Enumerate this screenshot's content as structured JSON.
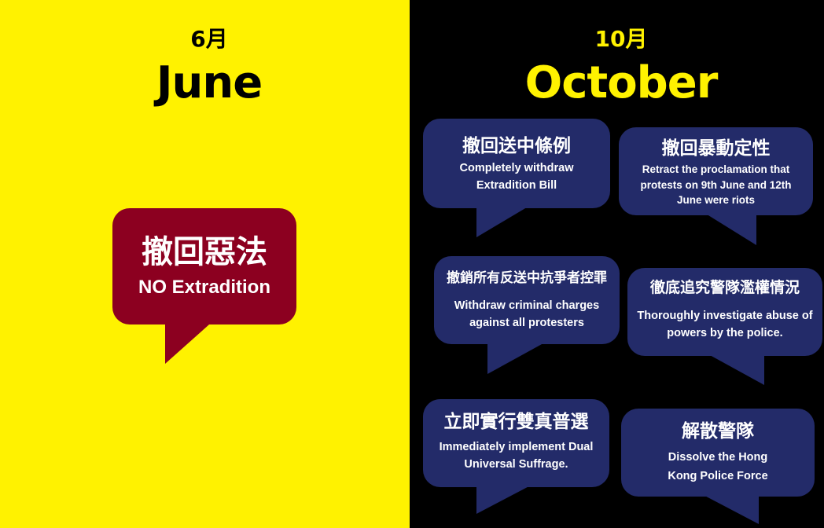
{
  "june": {
    "month_zh": "6月",
    "month_en": "June",
    "demand": {
      "zh": "撤回惡法",
      "en": "NO Extradition"
    }
  },
  "october": {
    "month_zh": "10月",
    "month_en": "October",
    "demands": [
      {
        "zh": "撤回送中條例",
        "en": "Completely withdraw Extradition Bill"
      },
      {
        "zh": "撤回暴動定性",
        "en": "Retract the proclamation that protests on 9th June and 12th June were riots"
      },
      {
        "zh": "撤銷所有反送中抗爭者控罪",
        "en": "Withdraw criminal charges against all protesters"
      },
      {
        "zh": "徹底追究警隊濫權情況",
        "en": "Thoroughly investigate abuse of powers by the police."
      },
      {
        "zh": "立即實行雙真普選",
        "en": "Immediately implement Dual Universal Suffrage."
      },
      {
        "zh": "解散警隊",
        "en": "Dissolve the Hong Kong Police Force"
      }
    ]
  },
  "colors": {
    "left_background": "#fff200",
    "right_background": "#000000",
    "june_bubble": "#8c0020",
    "october_bubble": "#232b69",
    "june_title_text": "#000000",
    "october_title_text": "#fff200"
  }
}
